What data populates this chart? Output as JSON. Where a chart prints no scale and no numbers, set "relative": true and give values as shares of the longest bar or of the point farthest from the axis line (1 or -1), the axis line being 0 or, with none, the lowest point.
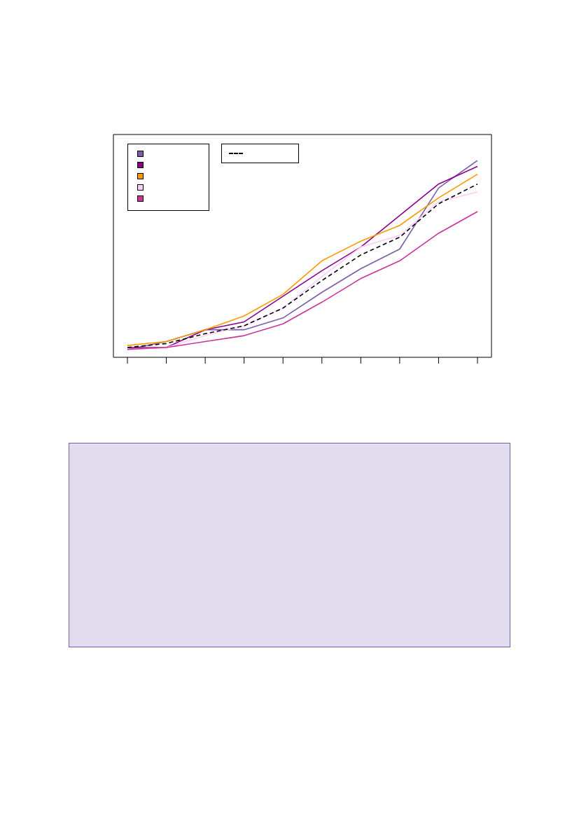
{
  "chart_data": {
    "type": "line",
    "relative": true,
    "categories": [
      null,
      null,
      null,
      null,
      null,
      null,
      null,
      null,
      null,
      null
    ],
    "marker": "none",
    "series": [
      {
        "color": "#7b5ea7",
        "values": [
          0.04,
          0.08,
          0.14,
          0.14,
          0.2,
          0.33,
          0.45,
          0.55,
          0.86,
          1.0
        ]
      },
      {
        "color": "#8b008b",
        "values": [
          0.05,
          0.05,
          0.14,
          0.18,
          0.31,
          0.44,
          0.56,
          0.72,
          0.88,
          0.97
        ]
      },
      {
        "color": "#ff9900",
        "values": [
          0.06,
          0.08,
          0.14,
          0.21,
          0.32,
          0.49,
          0.59,
          0.67,
          0.81,
          0.93
        ]
      },
      {
        "color": "#ffccff",
        "values": [
          0.04,
          0.05,
          0.11,
          0.16,
          0.25,
          0.41,
          0.56,
          0.62,
          0.79,
          0.84
        ]
      },
      {
        "color": "#cc3399",
        "values": [
          0.04,
          0.05,
          0.08,
          0.11,
          0.17,
          0.28,
          0.4,
          0.49,
          0.63,
          0.74
        ]
      },
      {
        "color": "#000000",
        "line_style": "dashed",
        "values": [
          0.05,
          0.07,
          0.12,
          0.16,
          0.25,
          0.39,
          0.52,
          0.61,
          0.78,
          0.88
        ]
      }
    ]
  }
}
